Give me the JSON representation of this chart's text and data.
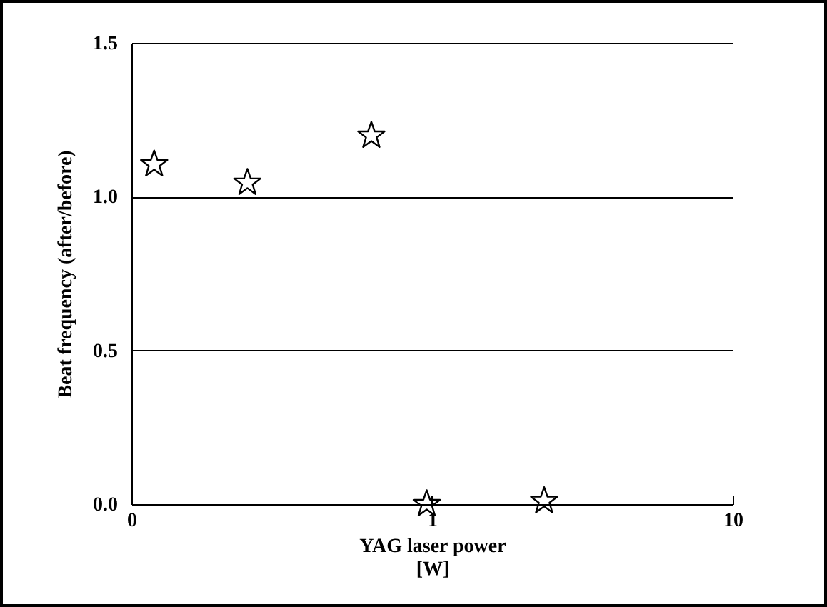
{
  "chart_data": {
    "type": "scatter",
    "xlabel": "YAG laser power [W]",
    "ylabel": "Beat frequency (after/before)",
    "x": [
      0.119,
      0.243,
      0.628,
      0.96,
      2.36
    ],
    "values": [
      1.105,
      1.045,
      1.198,
      0.0,
      0.01
    ],
    "log": "x",
    "xlim": [
      0.1,
      10
    ],
    "xticks": [
      {
        "value": 0.1,
        "label": "0"
      },
      1,
      10
    ],
    "ylim": [
      0,
      1.5
    ],
    "yticks": [
      {
        "value": 0,
        "label": "0.0"
      },
      {
        "value": 0.5,
        "label": "0.5"
      },
      {
        "value": 1,
        "label": "1.0"
      },
      {
        "value": 1.5,
        "label": "1.5"
      }
    ],
    "grid": "y",
    "marker": "star",
    "color": "#000000"
  }
}
